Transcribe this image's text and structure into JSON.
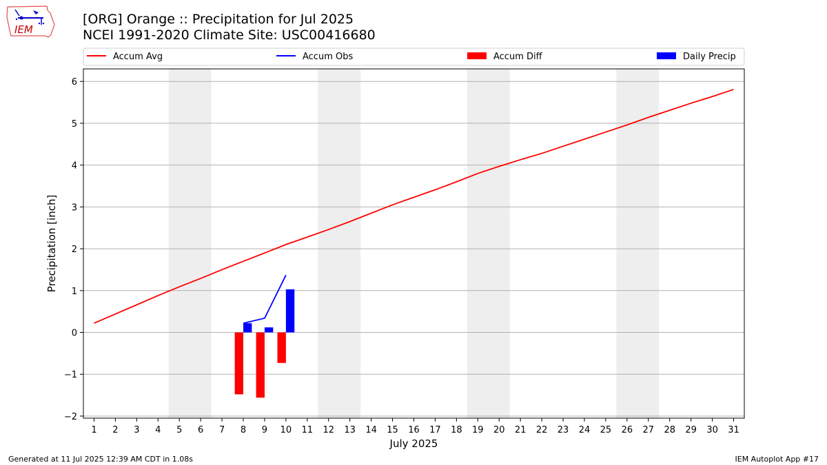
{
  "header": {
    "title_line1": "[ORG] Orange :: Precipitation for Jul 2025",
    "title_line2": "NCEI 1991-2020 Climate Site: USC00416680"
  },
  "logo": {
    "text": "IEM",
    "icon": "iem-iowa-weather-logo"
  },
  "footer": {
    "generated": "Generated at 11 Jul 2025 12:39 AM CDT in 1.08s",
    "app": "IEM Autoplot App #17"
  },
  "colors": {
    "accum_avg": "#ff0000",
    "accum_obs": "#0000ff",
    "accum_diff": "#ff0000",
    "daily_precip": "#0000ff",
    "weekend_shade": "#eeeeee",
    "grid": "#b0b0b0"
  },
  "chart_data": {
    "type": "bar",
    "title": "[ORG] Orange :: Precipitation for Jul 2025",
    "subtitle": "NCEI 1991-2020 Climate Site: USC00416680",
    "xlabel": "July 2025",
    "ylabel": "Precipitation [inch]",
    "x": [
      1,
      2,
      3,
      4,
      5,
      6,
      7,
      8,
      9,
      10,
      11,
      12,
      13,
      14,
      15,
      16,
      17,
      18,
      19,
      20,
      21,
      22,
      23,
      24,
      25,
      26,
      27,
      28,
      29,
      30,
      31
    ],
    "xlim": [
      0.5,
      31.5
    ],
    "ylim": [
      -2.05,
      6.3
    ],
    "yticks": [
      -2,
      -1,
      0,
      1,
      2,
      3,
      4,
      5,
      6
    ],
    "ytick_labels": [
      "−2",
      "−1",
      "0",
      "1",
      "2",
      "3",
      "4",
      "5",
      "6"
    ],
    "grid": "horizontal",
    "legend_placement": "top, above plot",
    "legend": [
      "Accum Avg",
      "Accum Obs",
      "Accum Diff",
      "Daily Precip"
    ],
    "weekend_spans": [
      [
        4.5,
        6.5
      ],
      [
        11.5,
        13.5
      ],
      [
        18.5,
        20.5
      ],
      [
        25.5,
        27.5
      ]
    ],
    "series": [
      {
        "name": "Accum Avg",
        "kind": "line",
        "x": [
          1,
          2,
          3,
          4,
          5,
          6,
          7,
          8,
          9,
          10,
          11,
          12,
          13,
          14,
          15,
          16,
          17,
          18,
          19,
          20,
          21,
          22,
          23,
          24,
          25,
          26,
          27,
          28,
          29,
          30,
          31
        ],
        "values": [
          0.22,
          0.44,
          0.66,
          0.88,
          1.09,
          1.29,
          1.5,
          1.7,
          1.9,
          2.1,
          2.28,
          2.46,
          2.65,
          2.85,
          3.05,
          3.23,
          3.41,
          3.6,
          3.8,
          3.97,
          4.13,
          4.28,
          4.45,
          4.62,
          4.79,
          4.96,
          5.14,
          5.31,
          5.48,
          5.64,
          5.81
        ]
      },
      {
        "name": "Accum Obs",
        "kind": "line",
        "x": [
          8,
          9,
          10
        ],
        "values": [
          0.22,
          0.34,
          1.37
        ]
      },
      {
        "name": "Accum Diff",
        "kind": "bar",
        "x": [
          8,
          9,
          10
        ],
        "values": [
          -1.48,
          -1.56,
          -0.73
        ]
      },
      {
        "name": "Daily Precip",
        "kind": "bar",
        "x": [
          8,
          9,
          10
        ],
        "values": [
          0.22,
          0.12,
          1.03
        ]
      }
    ]
  }
}
